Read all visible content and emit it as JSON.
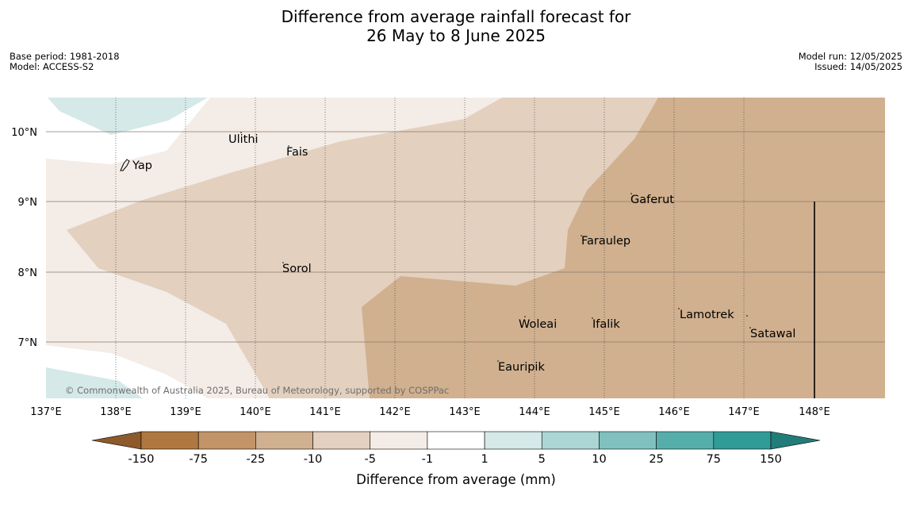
{
  "header": {
    "title_line1": "Difference from average rainfall forecast for",
    "title_line2": "26 May to 8 June 2025",
    "base_period": "Base period: 1981-2018",
    "model": "Model: ACCESS-S2",
    "model_run": "Model run: 12/05/2025",
    "issued": "Issued: 14/05/2025"
  },
  "map": {
    "lon_ticks": [
      "137°E",
      "138°E",
      "139°E",
      "140°E",
      "141°E",
      "142°E",
      "143°E",
      "144°E",
      "145°E",
      "146°E",
      "147°E",
      "148°E"
    ],
    "lat_ticks": [
      "10°N",
      "9°N",
      "8°N",
      "7°N"
    ],
    "places": [
      "Ulithi",
      "Fais",
      "Yap",
      "Gaferut",
      "Faraulep",
      "Sorol",
      "Lamotrek",
      "Woleai",
      "Ifalik",
      "Satawal",
      "Eauripik"
    ],
    "copyright": "© Commonwealth of Australia 2025, Bureau of Meteorology, supported by COSPPac"
  },
  "legend": {
    "title": "Difference from average (mm)",
    "labels": [
      "-150",
      "-75",
      "-25",
      "-10",
      "-5",
      "-1",
      "1",
      "5",
      "10",
      "25",
      "75",
      "150"
    ],
    "colors": [
      "#8c5a2b",
      "#b07840",
      "#c29468",
      "#d0b08f",
      "#e3d0bf",
      "#f4ece6",
      "#ffffff",
      "#d4e9e8",
      "#acd6d6",
      "#80c1bf",
      "#56aeab",
      "#309b97",
      "#227c79"
    ]
  }
}
